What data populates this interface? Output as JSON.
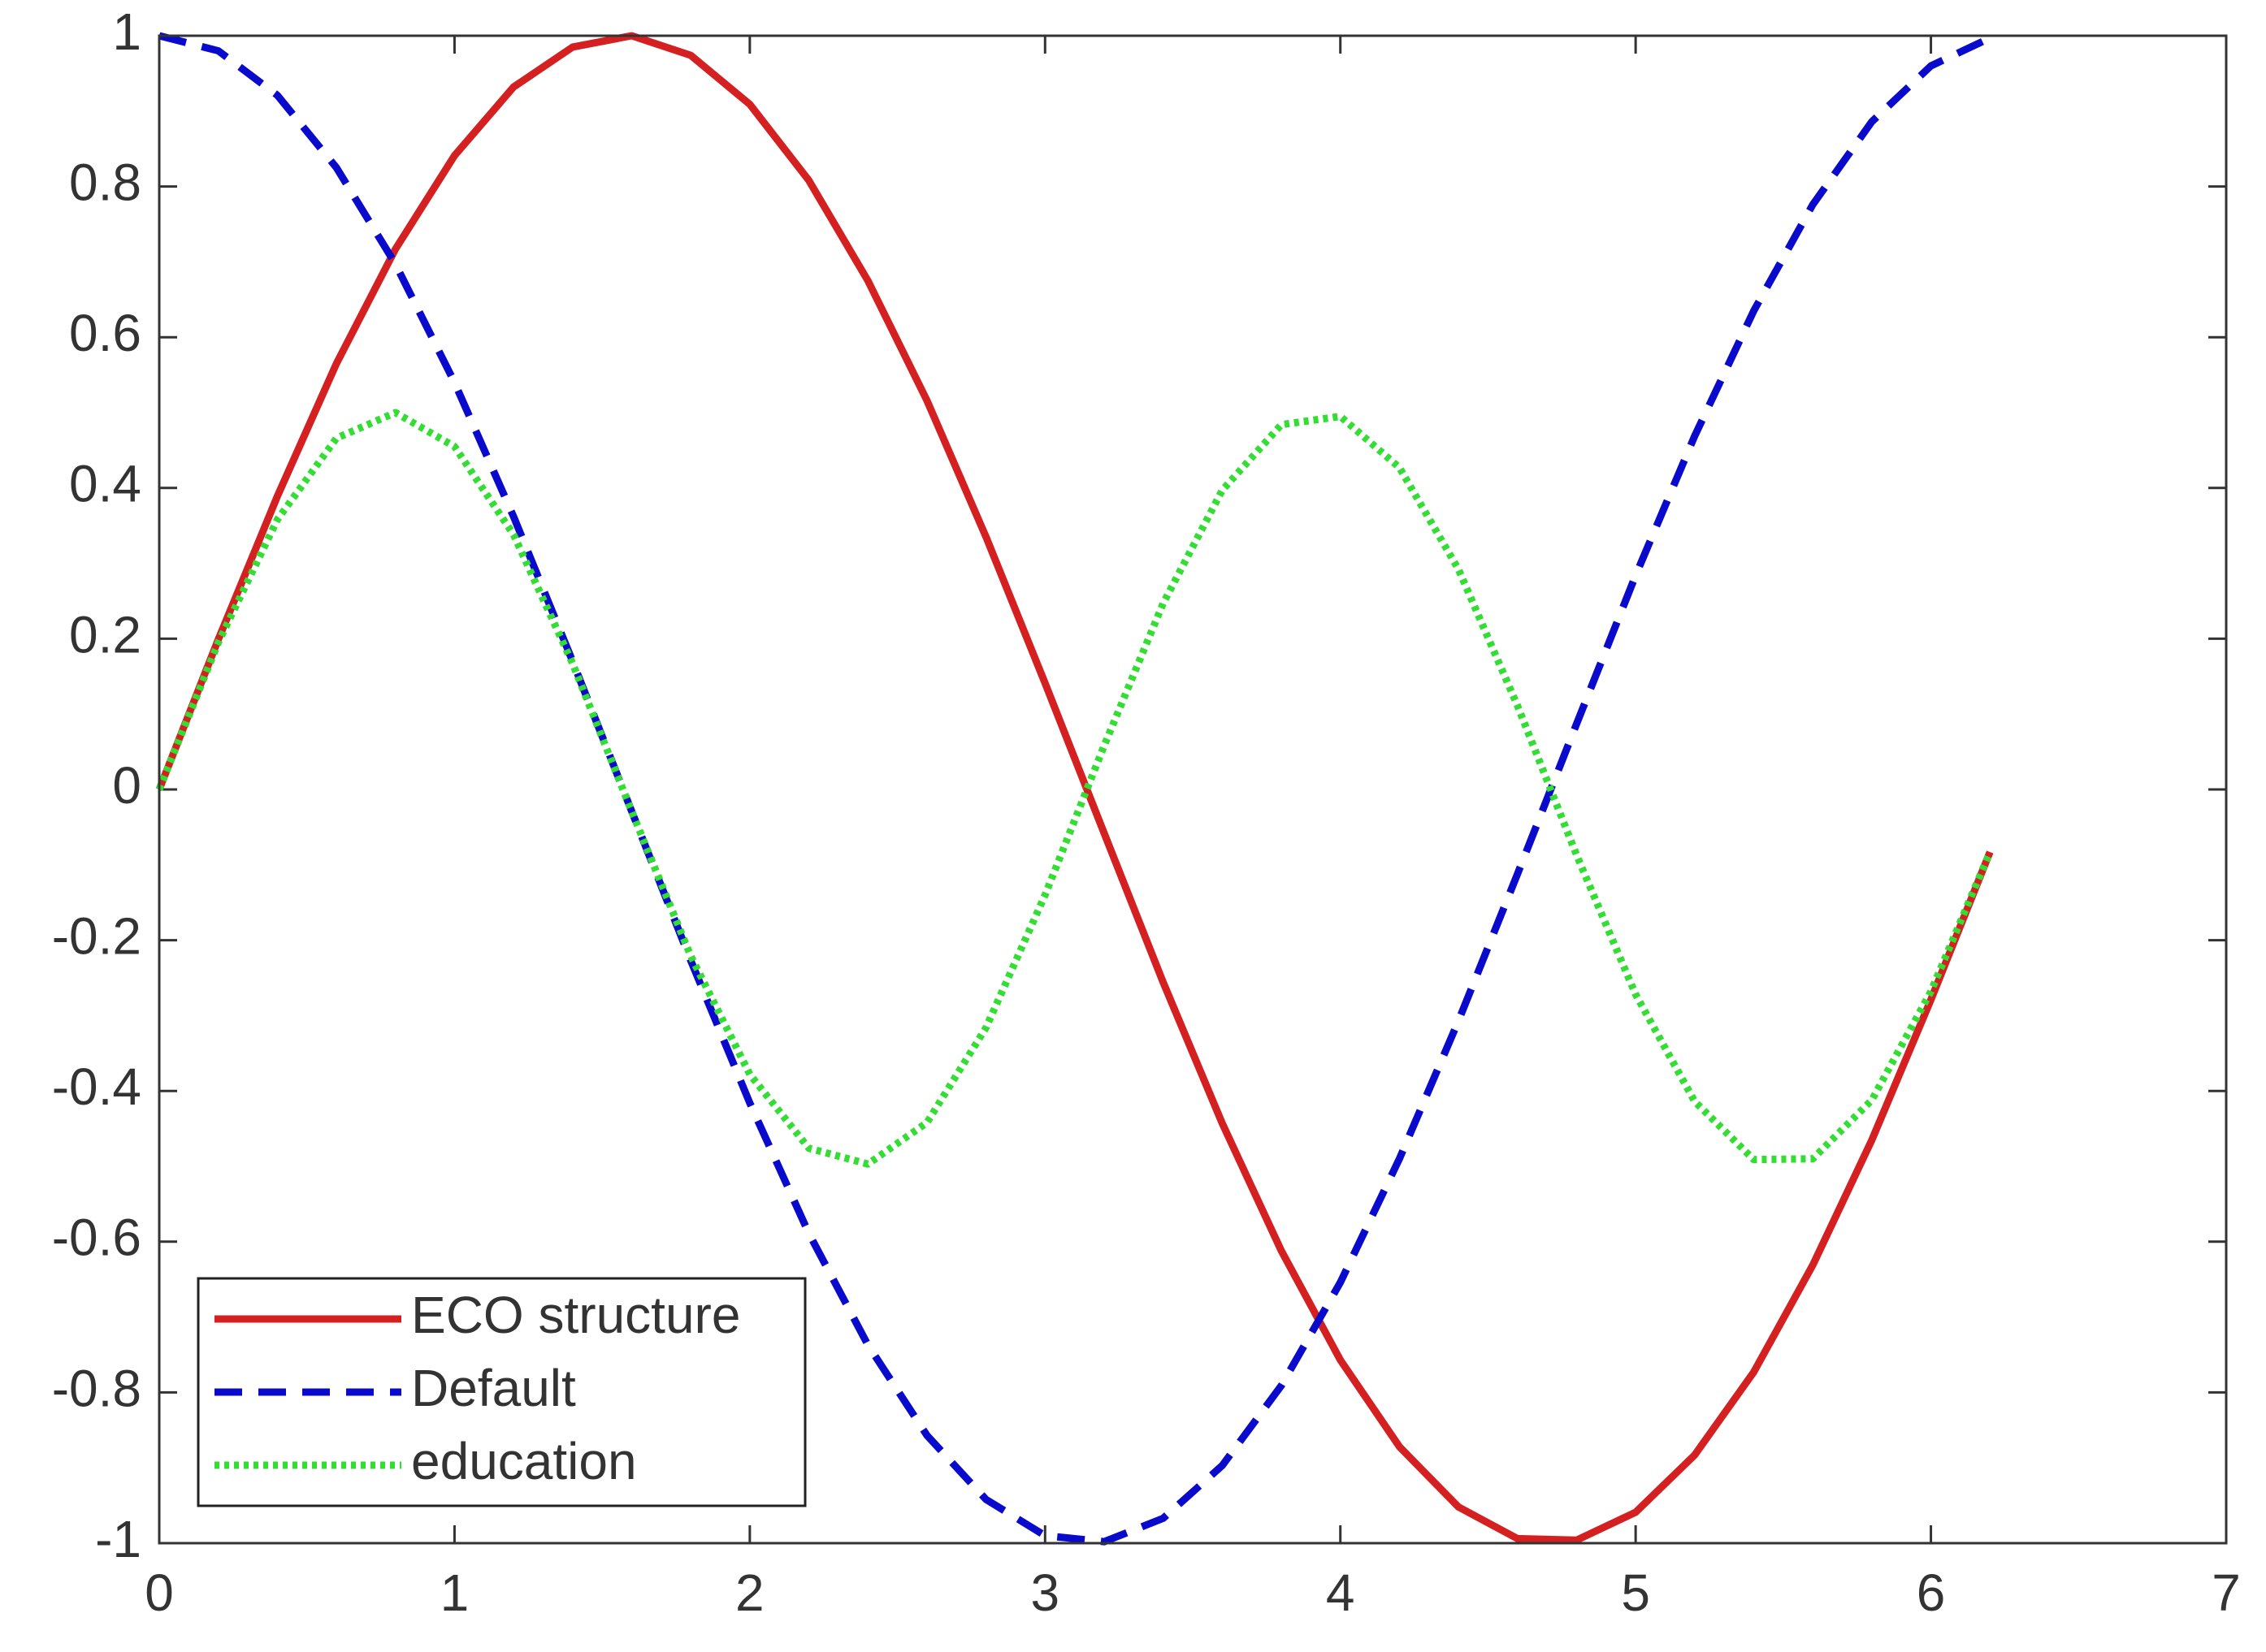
{
  "chart_data": {
    "type": "line",
    "x": [
      0,
      0.2,
      0.4,
      0.6,
      0.8,
      1.0,
      1.2,
      1.4,
      1.6,
      1.8,
      2.0,
      2.2,
      2.4,
      2.6,
      2.8,
      3.0,
      3.2,
      3.4,
      3.6,
      3.8,
      4.0,
      4.2,
      4.4,
      4.6,
      4.8,
      5.0,
      5.2,
      5.4,
      5.6,
      5.8,
      6.0,
      6.2
    ],
    "series": [
      {
        "name": "ECO structure",
        "color": "#d42020",
        "dash": "solid",
        "values": [
          0,
          0.199,
          0.389,
          0.565,
          0.717,
          0.841,
          0.932,
          0.985,
          1.0,
          0.974,
          0.909,
          0.808,
          0.675,
          0.516,
          0.335,
          0.141,
          -0.058,
          -0.256,
          -0.443,
          -0.612,
          -0.757,
          -0.872,
          -0.952,
          -0.994,
          -0.996,
          -0.959,
          -0.883,
          -0.773,
          -0.631,
          -0.465,
          -0.279,
          -0.083
        ]
      },
      {
        "name": "Default",
        "color": "#0a0acc",
        "dash": "dashed",
        "values": [
          1,
          0.98,
          0.921,
          0.825,
          0.697,
          0.54,
          0.362,
          0.17,
          -0.029,
          -0.227,
          -0.416,
          -0.589,
          -0.737,
          -0.857,
          -0.942,
          -0.99,
          -0.998,
          -0.967,
          -0.897,
          -0.791,
          -0.654,
          -0.49,
          -0.307,
          -0.112,
          0.087,
          0.284,
          0.469,
          0.635,
          0.776,
          0.886,
          0.96,
          0.997
        ]
      },
      {
        "name": "education",
        "color": "#33dd33",
        "dash": "dotted",
        "values": [
          0,
          0.195,
          0.358,
          0.466,
          0.5,
          0.455,
          0.338,
          0.167,
          -0.029,
          -0.221,
          -0.378,
          -0.476,
          -0.497,
          -0.442,
          -0.316,
          -0.14,
          0.058,
          0.247,
          0.397,
          0.484,
          0.495,
          0.427,
          0.292,
          0.111,
          -0.087,
          -0.272,
          -0.414,
          -0.491,
          -0.49,
          -0.412,
          -0.268,
          -0.083
        ]
      }
    ],
    "xlim": [
      0,
      7
    ],
    "xticks": [
      0,
      1,
      2,
      3,
      4,
      5,
      6,
      7
    ],
    "ylim": [
      -1,
      1
    ],
    "yticks": [
      -1,
      -0.8,
      -0.6,
      -0.4,
      -0.2,
      0,
      0.2,
      0.4,
      0.6,
      0.8,
      1
    ],
    "grid": false,
    "legend": "southwest"
  }
}
